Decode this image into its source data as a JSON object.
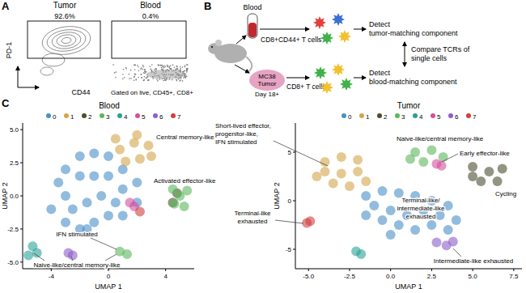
{
  "panel_labels": [
    "A",
    "B",
    "C"
  ],
  "panel_a": {
    "titles": [
      "Tumor",
      "Blood"
    ],
    "y_label": "PD-1",
    "x_label": "CD44",
    "gate_labels": [
      "92.6%",
      "0.4%"
    ],
    "gating_note": "Gated on live, CD45+, CD8+"
  },
  "panel_b": {
    "blood_label": "Blood",
    "blood_cells": "CD8+CD44+ T cells",
    "blood_result": [
      "Detect",
      "tumor-matching component"
    ],
    "compare": [
      "Compare TCRs of",
      "single cells"
    ],
    "tumor_label": [
      "MC38",
      "Tumor"
    ],
    "tumor_day": "Day 18+",
    "tumor_cells": "CD8+ T cells",
    "tumor_result": [
      "Detect",
      "blood-matching component"
    ]
  },
  "chart_data": [
    {
      "type": "scatter",
      "title": "Blood",
      "x_label": "UMAP 1",
      "y_label": "UMAP 2",
      "xlim": [
        -6,
        6
      ],
      "ylim": [
        -5.5,
        5.5
      ],
      "xticks": [
        -4,
        0,
        4
      ],
      "yticks": [
        {
          "value": 5,
          "label": "5.0"
        },
        {
          "value": 2.5,
          "label": "2.5"
        },
        {
          "value": 0,
          "label": "0.0"
        },
        {
          "value": -2.5,
          "label": "-2.5"
        },
        {
          "value": -5,
          "label": "-5.0"
        }
      ],
      "series": [
        {
          "name": "0",
          "color": "#4a90c8",
          "x": [
            -3.5,
            -3,
            -2,
            -1,
            0,
            1,
            -3,
            -2,
            -1,
            0,
            1,
            2,
            -2.5,
            -1.5,
            -0.5,
            0.5,
            -3,
            -2,
            -1,
            0,
            1,
            -1.5,
            2,
            -4
          ],
          "values": [
            1,
            2,
            3,
            3.2,
            3,
            2,
            0,
            1.5,
            1.5,
            1.5,
            0.5,
            1,
            -1,
            -0.5,
            0,
            -0.5,
            -2,
            -2.5,
            -2,
            -1.5,
            -1.5,
            -2.5,
            -0.5,
            -1
          ]
        },
        {
          "name": "1",
          "color": "#d4a54a",
          "x": [
            0.8,
            1.8,
            2.8,
            1.2,
            2.2,
            3,
            2,
            0.5
          ],
          "values": [
            3.5,
            4,
            3.8,
            2.6,
            2.8,
            3,
            4.6,
            4.3
          ]
        },
        {
          "name": "2",
          "color": "#4d4d2e",
          "x": [
            4.5,
            4.8
          ],
          "values": [
            -0.5,
            0.2
          ]
        },
        {
          "name": "3",
          "color": "#5cb85c",
          "x": [
            4.5,
            5,
            5.3,
            4.6,
            5.5,
            0.8,
            1.3
          ],
          "values": [
            0.5,
            0,
            -0.8,
            -0.6,
            0.4,
            -4.2,
            -4.4
          ]
        },
        {
          "name": "4",
          "color": "#2aa198",
          "x": [
            -5.3,
            -5,
            -5.6
          ],
          "values": [
            -3.8,
            -4.3,
            -4.5
          ]
        },
        {
          "name": "5",
          "color": "#d64ea0",
          "x": [
            1.5,
            1.8
          ],
          "values": [
            -0.5,
            -0.8
          ]
        },
        {
          "name": "6",
          "color": "#8e5ec9",
          "x": [
            -2.8,
            -2.5
          ],
          "values": [
            -4.3,
            -4.5
          ]
        },
        {
          "name": "7",
          "color": "#d04040",
          "x": [
            2.2
          ],
          "values": [
            -1.2
          ]
        }
      ],
      "annotations": [
        {
          "text": [
            "Central memory-like"
          ]
        },
        {
          "text": [
            "Activated effector-like"
          ]
        },
        {
          "text": [
            "IFN stimulated"
          ]
        },
        {
          "text": [
            "Naive-like/central memory-like"
          ]
        }
      ]
    },
    {
      "type": "scatter",
      "title": "Tumor",
      "x_label": "UMAP 1",
      "y_label": "UMAP 2",
      "xlim": [
        -5.8,
        8
      ],
      "ylim": [
        -7,
        8
      ],
      "xticks": [
        {
          "value": -5,
          "label": "-5.0"
        },
        {
          "value": -2.5,
          "label": "-2.5"
        },
        {
          "value": 0,
          "label": "0.0"
        },
        {
          "value": 2.5,
          "label": "2.5"
        },
        {
          "value": 5,
          "label": "5.0"
        },
        {
          "value": 7.5,
          "label": "7.5"
        }
      ],
      "yticks": [
        5,
        0,
        -5
      ],
      "series": [
        {
          "name": "0",
          "color": "#4a90c8",
          "x": [
            -1.5,
            -0.5,
            0.5,
            1.5,
            2.5,
            3.5,
            -1,
            0,
            1,
            2,
            3,
            4,
            -0.5,
            0.5,
            1.5,
            2.5,
            3.5,
            0,
            -1.5
          ],
          "values": [
            0.5,
            1,
            0.8,
            0.5,
            0,
            -0.5,
            -0.5,
            -1,
            -1.5,
            -1,
            -1.5,
            -2,
            -2,
            -2.5,
            -3,
            -2.5,
            -3,
            -3.5,
            -1.5
          ]
        },
        {
          "name": "1",
          "color": "#d4a54a",
          "x": [
            -4,
            -3,
            -2,
            -4,
            -3,
            -2,
            -3.5,
            -2.5,
            -1.5,
            -4.5
          ],
          "values": [
            4,
            4.5,
            4.2,
            3,
            2.8,
            3,
            1.8,
            1.5,
            2,
            2.5
          ]
        },
        {
          "name": "2",
          "color": "#4d4d2e",
          "x": [
            5,
            6,
            6.5,
            5.5,
            5,
            6.8
          ],
          "values": [
            3.5,
            3,
            2,
            2,
            2.5,
            3.3
          ]
        },
        {
          "name": "3",
          "color": "#5cb85c",
          "x": [
            1.5,
            2.5,
            3.2,
            2,
            1.2
          ],
          "values": [
            5,
            5.2,
            4.5,
            4,
            4.3
          ]
        },
        {
          "name": "4",
          "color": "#2aa198",
          "x": [
            -2.1,
            -1.8
          ],
          "values": [
            -5.2,
            -5.5
          ]
        },
        {
          "name": "5",
          "color": "#d64ea0",
          "x": [
            2.8,
            3.1
          ],
          "values": [
            3.8,
            3.6
          ]
        },
        {
          "name": "6",
          "color": "#8e5ec9",
          "x": [
            2.8,
            3.4,
            3.8
          ],
          "values": [
            -4.3,
            -4.6,
            -4.2
          ]
        },
        {
          "name": "7",
          "color": "#d04040",
          "x": [
            -5.1,
            -4.9
          ],
          "values": [
            -2.3,
            -2.1
          ]
        }
      ],
      "annotations": [
        {
          "text": [
            "Short-lived effector,",
            "progenitor-like,",
            "IFN stimulated"
          ]
        },
        {
          "text": [
            "Naive-like/central memory-like"
          ]
        },
        {
          "text": [
            "Early effector-like"
          ]
        },
        {
          "text": [
            "Cycling"
          ]
        },
        {
          "text": [
            "Terminal-like",
            "exhausted"
          ]
        },
        {
          "text": [
            "Terminal-like/",
            "intermediate-like",
            "exhausted"
          ]
        },
        {
          "text": [
            "Intermediate-like exhausted"
          ]
        }
      ]
    }
  ]
}
